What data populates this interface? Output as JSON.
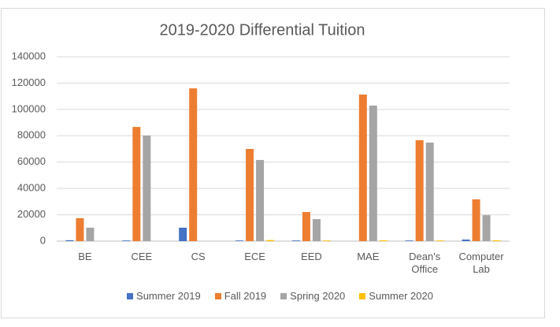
{
  "chart_data": {
    "type": "bar",
    "title": "2019-2020 Differential Tuition",
    "categories": [
      "BE",
      "CEE",
      "CS",
      "ECE",
      "EED",
      "MAE",
      "Dean's Office",
      "Computer Lab"
    ],
    "series": [
      {
        "name": "Summer 2019",
        "color": "#4472c4",
        "values": [
          700,
          500,
          10200,
          500,
          500,
          0,
          500,
          1200
        ]
      },
      {
        "name": "Fall 2019",
        "color": "#ed7d31",
        "values": [
          17400,
          86700,
          116000,
          70000,
          22100,
          111300,
          76600,
          31700
        ]
      },
      {
        "name": "Spring 2020",
        "color": "#a5a5a5",
        "values": [
          10200,
          80200,
          0,
          61600,
          16700,
          102900,
          74800,
          19700
        ]
      },
      {
        "name": "Summer 2020",
        "color": "#ffc000",
        "values": [
          0,
          0,
          0,
          800,
          500,
          600,
          500,
          600
        ]
      }
    ],
    "ylim": [
      0,
      140000
    ],
    "yticks": [
      0,
      20000,
      40000,
      60000,
      80000,
      100000,
      120000,
      140000
    ],
    "grid": true,
    "legend": "bottom"
  }
}
